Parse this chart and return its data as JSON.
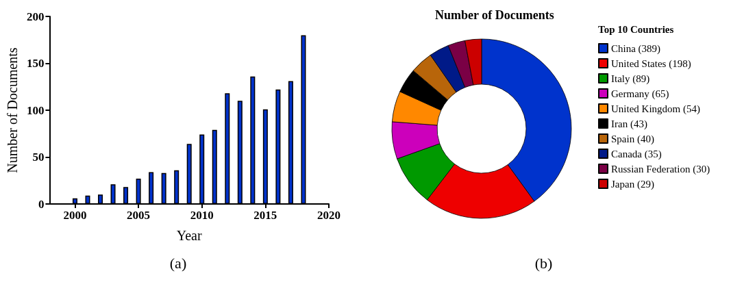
{
  "chart_data": [
    {
      "type": "bar",
      "xlabel": "Year",
      "ylabel": "Number of Documents",
      "x": [
        2000,
        2001,
        2002,
        2003,
        2004,
        2005,
        2006,
        2007,
        2008,
        2009,
        2010,
        2011,
        2012,
        2013,
        2014,
        2015,
        2016,
        2017,
        2018
      ],
      "values": [
        6,
        9,
        10,
        21,
        18,
        27,
        34,
        33,
        36,
        64,
        74,
        79,
        118,
        110,
        136,
        101,
        122,
        131,
        180
      ],
      "color": "#0033cc",
      "xlim": [
        1998,
        2020
      ],
      "xticks": [
        2000,
        2005,
        2010,
        2015,
        2020
      ],
      "ylim": [
        0,
        200
      ],
      "yticks": [
        0,
        50,
        100,
        150,
        200
      ],
      "grid": false,
      "annotations": [
        "(a)"
      ]
    },
    {
      "type": "donut",
      "title": "Number of Documents",
      "legend_title": "Top 10 Countries",
      "legend": "right",
      "categories": [
        "China (389)",
        "United States (198)",
        "Italy (89)",
        "Germany (65)",
        "United Kingdom (54)",
        "Iran (43)",
        "Spain (40)",
        "Canada (35)",
        "Russian Federation (30)",
        "Japan (29)"
      ],
      "values": [
        389,
        198,
        89,
        65,
        54,
        43,
        40,
        35,
        30,
        29
      ],
      "colors": [
        "#0033cc",
        "#ee0000",
        "#009900",
        "#cc00bb",
        "#ff8800",
        "#000000",
        "#b8650a",
        "#001a88",
        "#7a0045",
        "#cc0000"
      ],
      "annotations": [
        "(b)"
      ]
    }
  ]
}
